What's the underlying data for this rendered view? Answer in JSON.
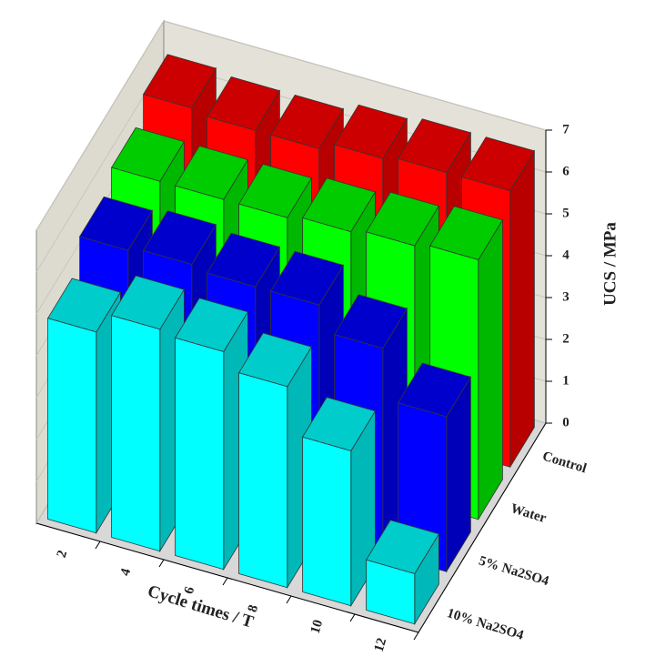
{
  "chart_data": {
    "type": "bar3d",
    "x_label": "Cycle times / T",
    "z_label": "UCS / MPa",
    "categories": [
      "2",
      "4",
      "6",
      "8",
      "10",
      "12"
    ],
    "series": [
      {
        "name": "10% Na2SO4",
        "color": "#00ffff",
        "values": [
          4.8,
          5.3,
          5.2,
          4.8,
          3.7,
          1.2
        ]
      },
      {
        "name": "5% Na2SO4",
        "color": "#0000ff",
        "values": [
          5.5,
          5.6,
          5.5,
          5.5,
          4.9,
          3.7
        ]
      },
      {
        "name": "Water",
        "color": "#00ff00",
        "values": [
          5.9,
          5.9,
          5.9,
          6.0,
          6.1,
          6.2
        ]
      },
      {
        "name": "Control",
        "color": "#ff0000",
        "values": [
          6.4,
          6.3,
          6.3,
          6.5,
          6.6,
          6.6
        ]
      }
    ],
    "zlim": [
      0,
      7
    ],
    "zticks": [
      0,
      1,
      2,
      3,
      4,
      5,
      6,
      7
    ],
    "grid": true
  }
}
